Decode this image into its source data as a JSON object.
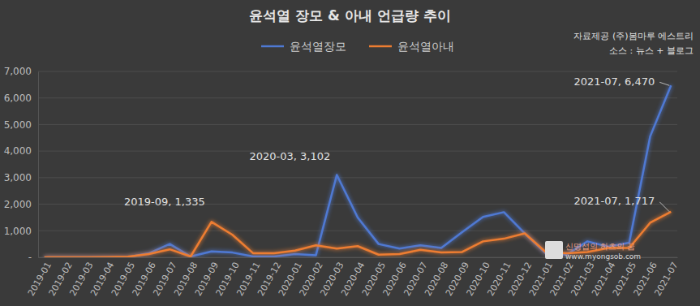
{
  "chart_data": {
    "type": "line",
    "title": "윤석열 장모 & 아내 언급량 추이",
    "source": [
      "자료제공 (주)봄마루 에스트리",
      "소스 : 뉴스 + 블로그"
    ],
    "watermark": [
      "신명섭의 하츠의 꿈",
      "www.myongsob.com"
    ],
    "categories": [
      "2019-01",
      "2019-02",
      "2019-03",
      "2019-04",
      "2019-05",
      "2019-06",
      "2019-07",
      "2019-08",
      "2019-09",
      "2019-10",
      "2019-11",
      "2019-12",
      "2020-01",
      "2020-02",
      "2020-03",
      "2020-04",
      "2020-05",
      "2020-06",
      "2020-07",
      "2020-08",
      "2020-09",
      "2020-10",
      "2020-11",
      "2020-12",
      "2021-01",
      "2021-02",
      "2021-03",
      "2021-04",
      "2021-05",
      "2021-06",
      "2021-07"
    ],
    "series": [
      {
        "name": "윤석열장모",
        "color": "#4f79d3",
        "values": [
          0,
          0,
          0,
          0,
          10,
          150,
          500,
          30,
          220,
          180,
          30,
          30,
          120,
          80,
          3102,
          1500,
          500,
          330,
          450,
          350,
          950,
          1520,
          1700,
          900,
          150,
          100,
          600,
          400,
          550,
          4550,
          6470
        ]
      },
      {
        "name": "윤석열아내",
        "color": "#ed7d31",
        "values": [
          0,
          0,
          0,
          10,
          20,
          120,
          300,
          30,
          1335,
          850,
          150,
          150,
          250,
          450,
          330,
          420,
          100,
          120,
          280,
          180,
          200,
          600,
          700,
          900,
          200,
          150,
          200,
          350,
          350,
          1300,
          1717
        ]
      }
    ],
    "annotations": [
      {
        "text": "2019-09,  1,335",
        "series": "윤석열아내",
        "x": "2019-09"
      },
      {
        "text": "2020-03,  3,102",
        "series": "윤석열장모",
        "x": "2020-03"
      },
      {
        "text": "2021-07,  6,470",
        "series": "윤석열장모",
        "x": "2021-07"
      },
      {
        "text": "2021-07,  1,717",
        "series": "윤석열아내",
        "x": "2021-07"
      }
    ],
    "ylim": [
      0,
      7000
    ],
    "yticks": [
      {
        "value": 0,
        "label": "-"
      },
      {
        "value": 1000,
        "label": "1,000"
      },
      {
        "value": 2000,
        "label": "2,000"
      },
      {
        "value": 3000,
        "label": "3,000"
      },
      {
        "value": 4000,
        "label": "4,000"
      },
      {
        "value": 5000,
        "label": "5,000"
      },
      {
        "value": 6000,
        "label": "6,000"
      },
      {
        "value": 7000,
        "label": "7,000"
      }
    ],
    "grid": true,
    "legend": "top"
  }
}
